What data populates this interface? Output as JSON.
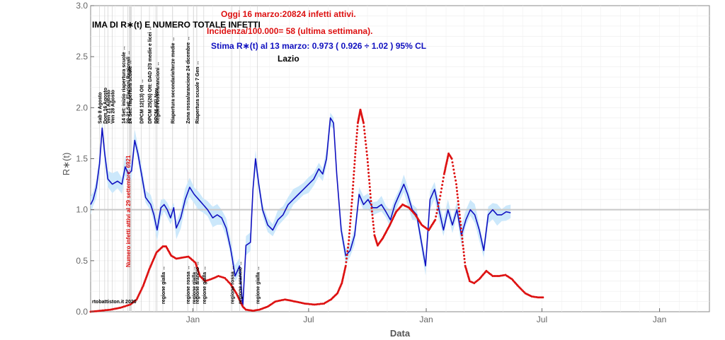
{
  "chart_data": {
    "type": "line",
    "title": "IMA DI R∗(t) E NUMERO TOTALE INFETTI",
    "xlabel": "Data",
    "ylabel": "R∗(t)",
    "ylim": [
      0,
      3
    ],
    "yticks": [
      "0.0",
      "0.5",
      "1.0",
      "1.5",
      "2.0",
      "2.5",
      "3.0"
    ],
    "x_ticks": [
      {
        "label": "Jan",
        "date": "2021-01-01"
      },
      {
        "label": "Jul",
        "date": "2021-07-01"
      },
      {
        "label": "Jan",
        "date": "2022-01-01"
      },
      {
        "label": "Jul",
        "date": "2022-07-01"
      },
      {
        "label": "Jan",
        "date": "2023-01-01"
      }
    ],
    "header_lines": {
      "today": "Oggi 16 marzo:20824 infetti attivi.",
      "incidence": "Incidenza/100.000= 58 (ultima settimana).",
      "estimate": "Stima R∗(t) al 13 marzo: 0.973 ( 0.926 ÷ 1.02 ) 95% CL",
      "region": "Lazio"
    },
    "credit": "rtobattiston.it 2020",
    "reference_line": 1.0,
    "colors": {
      "rt": "#1010c0",
      "band": "#cce8fb",
      "infetti": "#dd1111",
      "reference": "#c8c8c8",
      "header_red": "#dd1111",
      "header_blue": "#1010c0"
    },
    "events_top": [
      {
        "label": "Sab 8 Agosto",
        "date": "2020-08-08"
      },
      {
        "label": "Dom 16 Agosto",
        "date": "2020-08-16"
      },
      {
        "label": "Ven 21 Agosto",
        "date": "2020-08-21"
      },
      {
        "label": "Ven 28 Agosto",
        "date": "2020-08-28"
      },
      {
        "label": "14 Set: inizio riapertura scuole ↔",
        "date": "2020-09-14"
      },
      {
        "label": "20-21 Set: Elezioni Regionali ↔",
        "date": "2020-09-21"
      },
      {
        "label": "24 Set: riapertura scuole ↔",
        "date": "2020-09-24"
      },
      {
        "label": "DPCM 12(13) Ott ↔",
        "date": "2020-10-12"
      },
      {
        "label": "DPCM 25(26) Ott: DAD 2/3 medie e licei ↔",
        "date": "2020-10-25"
      },
      {
        "label": "DPCM 4(6) Nov ↔",
        "date": "2020-11-04"
      },
      {
        "label": "Regioni rosse/arancioni ↔",
        "date": "2020-11-06"
      },
      {
        "label": "Riapertura secondarie/terze medie ↔",
        "date": "2020-11-30"
      },
      {
        "label": "Zona rossa/arancione 24 dicembre ↔",
        "date": "2020-12-24"
      },
      {
        "label": "Riapertura scuole 7 Gen ↔",
        "date": "2021-01-07"
      }
    ],
    "events_bottom": [
      {
        "label": "regione gialla ↔",
        "date": "2020-11-15"
      },
      {
        "label": "regione rossa ↔",
        "date": "2020-12-24"
      },
      {
        "label": "regione gialla ↔",
        "date": "2021-01-02"
      },
      {
        "label": "regione arancio ↔",
        "date": "2021-01-07"
      },
      {
        "label": "regione gialla ↔",
        "date": "2021-01-18"
      },
      {
        "label": "regione rossa ↔",
        "date": "2021-03-03"
      },
      {
        "label": "regione arancio ↔",
        "date": "2021-03-15"
      },
      {
        "label": "regione gialla ↔",
        "date": "2021-04-12"
      }
    ],
    "infetti_label": "Numero infetti attivi al 29 settembre: 6921",
    "series": [
      {
        "name": "R∗(t)",
        "style": "line",
        "points": [
          [
            "2020-07-25",
            1.05
          ],
          [
            "2020-07-29",
            1.1
          ],
          [
            "2020-08-03",
            1.22
          ],
          [
            "2020-08-08",
            1.45
          ],
          [
            "2020-08-12",
            1.8
          ],
          [
            "2020-08-16",
            1.55
          ],
          [
            "2020-08-21",
            1.3
          ],
          [
            "2020-08-28",
            1.25
          ],
          [
            "2020-09-05",
            1.28
          ],
          [
            "2020-09-12",
            1.25
          ],
          [
            "2020-09-17",
            1.42
          ],
          [
            "2020-09-22",
            1.35
          ],
          [
            "2020-09-27",
            1.38
          ],
          [
            "2020-10-02",
            1.68
          ],
          [
            "2020-10-07",
            1.55
          ],
          [
            "2020-10-14",
            1.3
          ],
          [
            "2020-10-19",
            1.12
          ],
          [
            "2020-10-27",
            1.05
          ],
          [
            "2020-11-01",
            0.95
          ],
          [
            "2020-11-06",
            0.8
          ],
          [
            "2020-11-12",
            1.02
          ],
          [
            "2020-11-17",
            1.05
          ],
          [
            "2020-11-22",
            1.0
          ],
          [
            "2020-11-27",
            0.92
          ],
          [
            "2020-12-02",
            1.02
          ],
          [
            "2020-12-06",
            0.82
          ],
          [
            "2020-12-13",
            0.92
          ],
          [
            "2020-12-20",
            1.1
          ],
          [
            "2020-12-27",
            1.22
          ],
          [
            "2021-01-03",
            1.15
          ],
          [
            "2021-01-10",
            1.1
          ],
          [
            "2021-01-17",
            1.05
          ],
          [
            "2021-01-24",
            1.0
          ],
          [
            "2021-02-01",
            0.92
          ],
          [
            "2021-02-08",
            0.95
          ],
          [
            "2021-02-15",
            0.92
          ],
          [
            "2021-02-22",
            0.82
          ],
          [
            "2021-03-01",
            0.62
          ],
          [
            "2021-03-08",
            0.35
          ],
          [
            "2021-03-15",
            0.45
          ],
          [
            "2021-03-20",
            0.05
          ],
          [
            "2021-03-25",
            0.65
          ],
          [
            "2021-04-01",
            0.68
          ],
          [
            "2021-04-05",
            1.2
          ],
          [
            "2021-04-09",
            1.5
          ],
          [
            "2021-04-14",
            1.25
          ],
          [
            "2021-04-20",
            1.0
          ],
          [
            "2021-04-28",
            0.85
          ],
          [
            "2021-05-06",
            0.8
          ],
          [
            "2021-05-14",
            0.9
          ],
          [
            "2021-05-22",
            0.95
          ],
          [
            "2021-05-30",
            1.05
          ],
          [
            "2021-06-07",
            1.1
          ],
          [
            "2021-06-15",
            1.15
          ],
          [
            "2021-06-23",
            1.2
          ],
          [
            "2021-07-01",
            1.25
          ],
          [
            "2021-07-09",
            1.3
          ],
          [
            "2021-07-17",
            1.4
          ],
          [
            "2021-07-23",
            1.35
          ],
          [
            "2021-07-29",
            1.5
          ],
          [
            "2021-08-04",
            1.9
          ],
          [
            "2021-08-09",
            1.85
          ],
          [
            "2021-08-14",
            1.35
          ],
          [
            "2021-08-21",
            0.8
          ],
          [
            "2021-08-28",
            0.55
          ],
          [
            "2021-09-04",
            0.6
          ],
          [
            "2021-09-11",
            0.75
          ],
          [
            "2021-09-18",
            1.15
          ],
          [
            "2021-09-25",
            1.05
          ],
          [
            "2021-10-02",
            1.1
          ],
          [
            "2021-10-09",
            1.02
          ],
          [
            "2021-10-16",
            1.02
          ],
          [
            "2021-10-23",
            1.05
          ],
          [
            "2021-10-30",
            0.98
          ],
          [
            "2021-11-06",
            0.9
          ],
          [
            "2021-11-13",
            1.05
          ],
          [
            "2021-11-20",
            1.15
          ],
          [
            "2021-11-27",
            1.25
          ],
          [
            "2021-12-03",
            1.15
          ],
          [
            "2021-12-10",
            1.0
          ],
          [
            "2021-12-17",
            0.95
          ],
          [
            "2021-12-24",
            0.7
          ],
          [
            "2021-12-31",
            0.45
          ],
          [
            "2022-01-07",
            1.1
          ],
          [
            "2022-01-14",
            1.2
          ],
          [
            "2022-01-21",
            1.0
          ],
          [
            "2022-01-28",
            0.8
          ],
          [
            "2022-02-04",
            1.0
          ],
          [
            "2022-02-11",
            0.85
          ],
          [
            "2022-02-18",
            1.0
          ],
          [
            "2022-02-25",
            0.75
          ],
          [
            "2022-03-04",
            0.9
          ],
          [
            "2022-03-11",
            1.0
          ],
          [
            "2022-03-18",
            0.95
          ],
          [
            "2022-03-25",
            0.8
          ],
          [
            "2022-04-01",
            0.6
          ],
          [
            "2022-04-08",
            0.95
          ],
          [
            "2022-04-15",
            1.0
          ],
          [
            "2022-04-22",
            0.95
          ],
          [
            "2022-04-29",
            0.95
          ],
          [
            "2022-05-06",
            0.98
          ],
          [
            "2022-05-13",
            0.97
          ]
        ]
      },
      {
        "name": "Infetti attivi",
        "style": "dots",
        "points": [
          [
            "2020-07-25",
            0.0
          ],
          [
            "2020-08-10",
            0.01
          ],
          [
            "2020-08-25",
            0.02
          ],
          [
            "2020-09-10",
            0.04
          ],
          [
            "2020-09-25",
            0.07
          ],
          [
            "2020-10-05",
            0.12
          ],
          [
            "2020-10-15",
            0.25
          ],
          [
            "2020-10-25",
            0.42
          ],
          [
            "2020-11-05",
            0.58
          ],
          [
            "2020-11-15",
            0.64
          ],
          [
            "2020-11-20",
            0.64
          ],
          [
            "2020-11-28",
            0.55
          ],
          [
            "2020-12-06",
            0.52
          ],
          [
            "2020-12-15",
            0.53
          ],
          [
            "2020-12-25",
            0.54
          ],
          [
            "2021-01-05",
            0.48
          ],
          [
            "2021-01-12",
            0.35
          ],
          [
            "2021-01-20",
            0.3
          ],
          [
            "2021-01-30",
            0.32
          ],
          [
            "2021-02-10",
            0.35
          ],
          [
            "2021-02-20",
            0.33
          ],
          [
            "2021-03-01",
            0.27
          ],
          [
            "2021-03-10",
            0.18
          ],
          [
            "2021-03-20",
            0.05
          ],
          [
            "2021-03-25",
            0.02
          ],
          [
            "2021-04-05",
            0.01
          ],
          [
            "2021-04-15",
            0.02
          ],
          [
            "2021-04-28",
            0.05
          ],
          [
            "2021-05-10",
            0.1
          ],
          [
            "2021-05-25",
            0.12
          ],
          [
            "2021-06-10",
            0.1
          ],
          [
            "2021-06-25",
            0.08
          ],
          [
            "2021-07-10",
            0.07
          ],
          [
            "2021-07-25",
            0.08
          ],
          [
            "2021-08-05",
            0.12
          ],
          [
            "2021-08-15",
            0.18
          ],
          [
            "2021-08-22",
            0.28
          ],
          [
            "2021-08-28",
            0.45
          ],
          [
            "2021-09-02",
            0.7
          ],
          [
            "2021-09-07",
            1.1
          ],
          [
            "2021-09-12",
            1.55
          ],
          [
            "2021-09-16",
            1.85
          ],
          [
            "2021-09-20",
            1.98
          ],
          [
            "2021-09-25",
            1.85
          ],
          [
            "2021-10-01",
            1.5
          ],
          [
            "2021-10-07",
            1.05
          ],
          [
            "2021-10-12",
            0.75
          ],
          [
            "2021-10-17",
            0.65
          ],
          [
            "2021-10-25",
            0.72
          ],
          [
            "2021-11-05",
            0.85
          ],
          [
            "2021-11-15",
            0.98
          ],
          [
            "2021-11-25",
            1.05
          ],
          [
            "2021-12-05",
            1.02
          ],
          [
            "2021-12-15",
            0.95
          ],
          [
            "2021-12-25",
            0.85
          ],
          [
            "2022-01-05",
            0.8
          ],
          [
            "2022-01-15",
            0.9
          ],
          [
            "2022-01-22",
            1.1
          ],
          [
            "2022-01-29",
            1.35
          ],
          [
            "2022-02-05",
            1.55
          ],
          [
            "2022-02-10",
            1.5
          ],
          [
            "2022-02-17",
            1.25
          ],
          [
            "2022-02-24",
            0.85
          ],
          [
            "2022-03-03",
            0.45
          ],
          [
            "2022-03-10",
            0.3
          ],
          [
            "2022-03-17",
            0.28
          ],
          [
            "2022-03-25",
            0.32
          ],
          [
            "2022-04-05",
            0.4
          ],
          [
            "2022-04-15",
            0.35
          ],
          [
            "2022-04-25",
            0.35
          ],
          [
            "2022-05-05",
            0.36
          ],
          [
            "2022-05-15",
            0.32
          ],
          [
            "2022-05-25",
            0.25
          ],
          [
            "2022-06-05",
            0.18
          ],
          [
            "2022-06-15",
            0.15
          ],
          [
            "2022-06-25",
            0.14
          ],
          [
            "2022-07-05",
            0.14
          ]
        ]
      }
    ]
  }
}
